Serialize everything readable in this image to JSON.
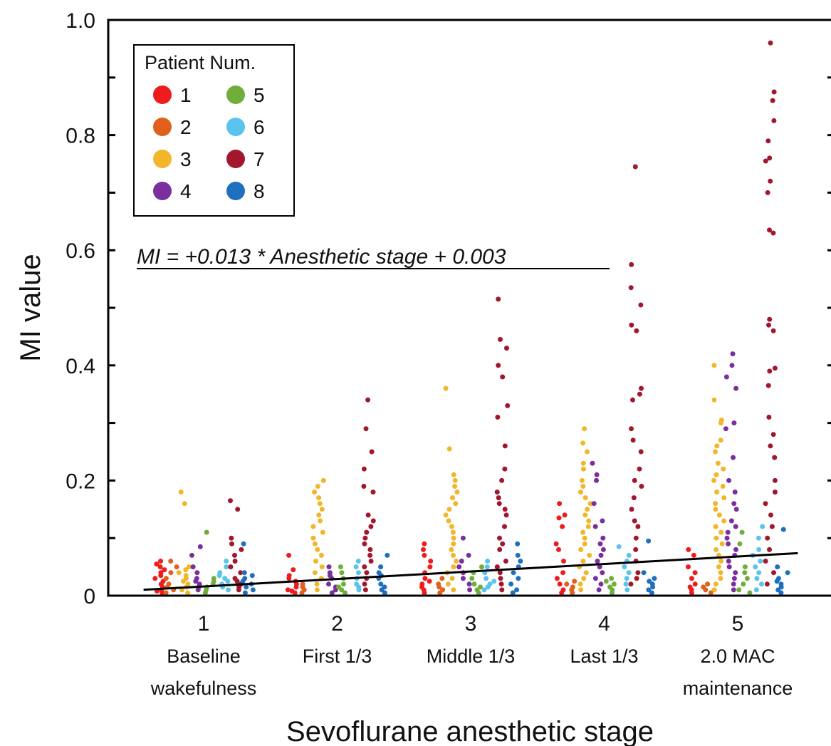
{
  "chart_data": {
    "type": "scatter",
    "xlabel": "Sevoflurane anesthetic stage",
    "ylabel": "MI value",
    "xlim": [
      0.5,
      5.65
    ],
    "ylim": [
      0,
      1.0
    ],
    "y_ticks": [
      "0",
      "0.2",
      "0.4",
      "0.6",
      "0.8",
      "1.0"
    ],
    "grid": false,
    "categories": [
      {
        "x": 1,
        "number": "1",
        "line1": "Baseline",
        "line2": "wakefulness"
      },
      {
        "x": 2,
        "number": "2",
        "line1": "First 1/3",
        "line2": ""
      },
      {
        "x": 3,
        "number": "3",
        "line1": "Middle 1/3",
        "line2": ""
      },
      {
        "x": 4,
        "number": "4",
        "line1": "Last 1/3",
        "line2": ""
      },
      {
        "x": 5,
        "number": "5",
        "line1": "2.0 MAC",
        "line2": "maintenance"
      }
    ],
    "legend": {
      "title": "Patient Num.",
      "placement": "top-left",
      "entries": [
        {
          "label": "1",
          "color": "#ee1c1c"
        },
        {
          "label": "2",
          "color": "#e0601c"
        },
        {
          "label": "3",
          "color": "#f2b62a"
        },
        {
          "label": "4",
          "color": "#7b2f9e"
        },
        {
          "label": "5",
          "color": "#6fae3a"
        },
        {
          "label": "6",
          "color": "#5ac3ee"
        },
        {
          "label": "7",
          "color": "#a3172e"
        },
        {
          "label": "8",
          "color": "#1f6fbf"
        }
      ]
    },
    "regression": {
      "label": "MI = +0.013 * Anesthetic stage + 0.003",
      "slope": 0.013,
      "intercept": 0.003,
      "x_range": [
        0.55,
        5.45
      ]
    },
    "series": [
      {
        "name": "1",
        "color": "#ee1c1c",
        "points_by_stage": [
          [
            0.06,
            0.055,
            0.05,
            0.045,
            0.04,
            0.035,
            0.03,
            0.025,
            0.02,
            0.015,
            0.01,
            0.008,
            0.005
          ],
          [
            0.07,
            0.045,
            0.035,
            0.03,
            0.025,
            0.02,
            0.015,
            0.01,
            0.008,
            0.005
          ],
          [
            0.09,
            0.08,
            0.07,
            0.06,
            0.05,
            0.04,
            0.03,
            0.025,
            0.02,
            0.015,
            0.01,
            0.005
          ],
          [
            0.16,
            0.14,
            0.135,
            0.12,
            0.09,
            0.08,
            0.06,
            0.04,
            0.03,
            0.02,
            0.01,
            0.005
          ],
          [
            0.08,
            0.07,
            0.05,
            0.04,
            0.03,
            0.02,
            0.015,
            0.01,
            0.005
          ]
        ]
      },
      {
        "name": "2",
        "color": "#e0601c",
        "points_by_stage": [
          [
            0.06,
            0.05,
            0.04,
            0.03,
            0.02,
            0.015,
            0.01,
            0.005
          ],
          [
            0.02,
            0.015,
            0.01,
            0.005
          ],
          [
            0.03,
            0.02,
            0.015,
            0.01,
            0.005
          ],
          [
            0.025,
            0.02,
            0.015,
            0.01,
            0.005
          ],
          [
            0.02,
            0.015,
            0.01,
            0.005
          ]
        ]
      },
      {
        "name": "3",
        "color": "#f2b62a",
        "points_by_stage": [
          [
            0.18,
            0.16,
            0.05,
            0.045,
            0.04,
            0.035,
            0.03,
            0.025,
            0.02,
            0.015,
            0.01,
            0.005
          ],
          [
            0.2,
            0.19,
            0.18,
            0.17,
            0.16,
            0.15,
            0.14,
            0.13,
            0.12,
            0.11,
            0.1,
            0.09,
            0.08,
            0.07,
            0.06,
            0.05,
            0.04,
            0.03,
            0.02,
            0.01
          ],
          [
            0.36,
            0.255,
            0.21,
            0.2,
            0.19,
            0.18,
            0.17,
            0.16,
            0.15,
            0.14,
            0.13,
            0.12,
            0.11,
            0.1,
            0.09,
            0.08,
            0.07,
            0.06,
            0.05,
            0.04,
            0.03,
            0.02,
            0.01
          ],
          [
            0.29,
            0.265,
            0.25,
            0.23,
            0.22,
            0.2,
            0.19,
            0.18,
            0.17,
            0.16,
            0.15,
            0.14,
            0.13,
            0.12,
            0.11,
            0.1,
            0.09,
            0.08,
            0.07,
            0.06,
            0.05,
            0.04,
            0.03,
            0.02,
            0.01
          ],
          [
            0.4,
            0.34,
            0.305,
            0.3,
            0.27,
            0.26,
            0.25,
            0.23,
            0.22,
            0.21,
            0.2,
            0.19,
            0.18,
            0.17,
            0.16,
            0.15,
            0.14,
            0.13,
            0.12,
            0.11,
            0.1,
            0.09,
            0.08,
            0.07,
            0.06,
            0.05,
            0.04,
            0.03,
            0.02,
            0.01
          ]
        ]
      },
      {
        "name": "4",
        "color": "#7b2f9e",
        "points_by_stage": [
          [
            0.085,
            0.07,
            0.05,
            0.04,
            0.03,
            0.025,
            0.02,
            0.015,
            0.01
          ],
          [
            0.05,
            0.04,
            0.035,
            0.03,
            0.02,
            0.015,
            0.01,
            0.005
          ],
          [
            0.1,
            0.07,
            0.06,
            0.05,
            0.04,
            0.03,
            0.02,
            0.01
          ],
          [
            0.23,
            0.21,
            0.2,
            0.16,
            0.13,
            0.12,
            0.1,
            0.09,
            0.08,
            0.07,
            0.06,
            0.05,
            0.04,
            0.03,
            0.02,
            0.01
          ],
          [
            0.42,
            0.4,
            0.38,
            0.36,
            0.3,
            0.29,
            0.24,
            0.2,
            0.18,
            0.16,
            0.15,
            0.13,
            0.12,
            0.11,
            0.1,
            0.09,
            0.08,
            0.07,
            0.06,
            0.05,
            0.04,
            0.03,
            0.02,
            0.01
          ]
        ]
      },
      {
        "name": "5",
        "color": "#6fae3a",
        "points_by_stage": [
          [
            0.11,
            0.03,
            0.025,
            0.02,
            0.015,
            0.01,
            0.005
          ],
          [
            0.05,
            0.04,
            0.03,
            0.02,
            0.015,
            0.01,
            0.005
          ],
          [
            0.05,
            0.04,
            0.03,
            0.02,
            0.015,
            0.01,
            0.005
          ],
          [
            0.03,
            0.025,
            0.02,
            0.015,
            0.01,
            0.005
          ],
          [
            0.11,
            0.09,
            0.05,
            0.04,
            0.03,
            0.02,
            0.01,
            0.005
          ]
        ]
      },
      {
        "name": "6",
        "color": "#5ac3ee",
        "points_by_stage": [
          [
            0.06,
            0.05,
            0.04,
            0.035,
            0.03,
            0.025,
            0.02,
            0.015,
            0.01
          ],
          [
            0.06,
            0.05,
            0.04,
            0.03,
            0.02,
            0.015,
            0.01
          ],
          [
            0.06,
            0.05,
            0.04,
            0.03,
            0.025,
            0.02,
            0.015,
            0.01
          ],
          [
            0.085,
            0.07,
            0.06,
            0.05,
            0.04,
            0.03,
            0.02,
            0.01
          ],
          [
            0.12,
            0.1,
            0.08,
            0.07,
            0.06,
            0.05,
            0.04,
            0.03,
            0.02,
            0.01
          ]
        ]
      },
      {
        "name": "7",
        "color": "#a3172e",
        "points_by_stage": [
          [
            0.165,
            0.15,
            0.1,
            0.09,
            0.08,
            0.07,
            0.06,
            0.05,
            0.04,
            0.03,
            0.025,
            0.02,
            0.015,
            0.01
          ],
          [
            0.34,
            0.29,
            0.25,
            0.22,
            0.19,
            0.18,
            0.14,
            0.13,
            0.12,
            0.11,
            0.1,
            0.09,
            0.08,
            0.07,
            0.06,
            0.05,
            0.04,
            0.03,
            0.02,
            0.01
          ],
          [
            0.515,
            0.445,
            0.43,
            0.4,
            0.38,
            0.33,
            0.31,
            0.26,
            0.22,
            0.2,
            0.18,
            0.17,
            0.16,
            0.15,
            0.14,
            0.12,
            0.1,
            0.09,
            0.08,
            0.06,
            0.05,
            0.04,
            0.03,
            0.02,
            0.01
          ],
          [
            0.745,
            0.575,
            0.535,
            0.505,
            0.47,
            0.46,
            0.36,
            0.35,
            0.34,
            0.29,
            0.27,
            0.25,
            0.22,
            0.2,
            0.19,
            0.17,
            0.15,
            0.13,
            0.12,
            0.1,
            0.08,
            0.06,
            0.04,
            0.03,
            0.02
          ],
          [
            0.96,
            0.875,
            0.86,
            0.825,
            0.79,
            0.76,
            0.755,
            0.72,
            0.7,
            0.635,
            0.63,
            0.48,
            0.47,
            0.46,
            0.395,
            0.39,
            0.365,
            0.31,
            0.28,
            0.26,
            0.24,
            0.2,
            0.18,
            0.16,
            0.14,
            0.12,
            0.1,
            0.08,
            0.06,
            0.04,
            0.02
          ]
        ]
      },
      {
        "name": "8",
        "color": "#1f6fbf",
        "points_by_stage": [
          [
            0.09,
            0.04,
            0.035,
            0.03,
            0.025,
            0.02,
            0.015,
            0.01,
            0.005
          ],
          [
            0.07,
            0.05,
            0.04,
            0.035,
            0.03,
            0.02,
            0.015,
            0.01,
            0.005
          ],
          [
            0.09,
            0.07,
            0.06,
            0.05,
            0.04,
            0.03,
            0.02,
            0.01,
            0.005
          ],
          [
            0.095,
            0.04,
            0.03,
            0.025,
            0.02,
            0.015,
            0.01,
            0.005
          ],
          [
            0.115,
            0.05,
            0.04,
            0.03,
            0.025,
            0.02,
            0.015,
            0.01,
            0.005
          ]
        ]
      }
    ]
  }
}
